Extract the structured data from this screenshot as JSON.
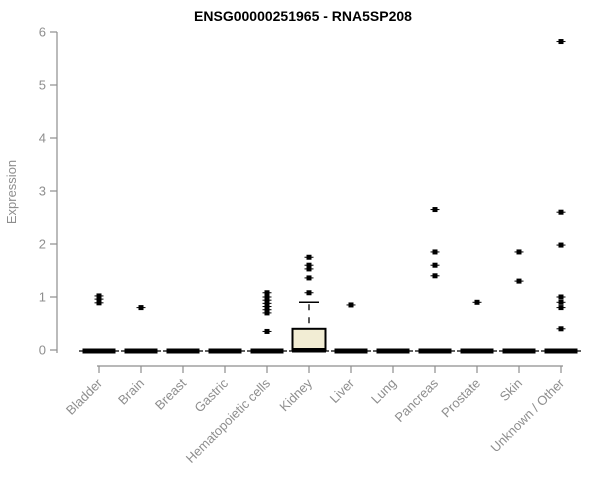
{
  "chart_data": {
    "type": "boxplot",
    "title": "ENSG00000251965 - RNA5SP208",
    "ylabel": "Expression",
    "xlabel": "",
    "ylim": [
      0,
      6
    ],
    "yticks": [
      0,
      1,
      2,
      3,
      4,
      5,
      6
    ],
    "grid": false,
    "legend": null,
    "categories": [
      "Bladder",
      "Brain",
      "Breast",
      "Gastric",
      "Hematopoietic cells",
      "Kidney",
      "Liver",
      "Lung",
      "Pancreas",
      "Prostate",
      "Skin",
      "Unknown / Other"
    ],
    "boxes": [
      {
        "category": "Bladder",
        "median": 0,
        "q1": 0,
        "q3": 0,
        "whisker_low": 0,
        "whisker_high": 0,
        "outliers": [
          1.02,
          0.96,
          0.89
        ]
      },
      {
        "category": "Brain",
        "median": 0,
        "q1": 0,
        "q3": 0,
        "whisker_low": 0,
        "whisker_high": 0,
        "outliers": [
          0.8
        ]
      },
      {
        "category": "Breast",
        "median": 0,
        "q1": 0,
        "q3": 0,
        "whisker_low": 0,
        "whisker_high": 0,
        "outliers": []
      },
      {
        "category": "Gastric",
        "median": 0,
        "q1": 0,
        "q3": 0,
        "whisker_low": 0,
        "whisker_high": 0,
        "outliers": []
      },
      {
        "category": "Hematopoietic cells",
        "median": 0,
        "q1": 0,
        "q3": 0,
        "whisker_low": 0,
        "whisker_high": 0,
        "outliers": [
          1.08,
          1.0,
          0.94,
          0.88,
          0.82,
          0.76,
          0.7,
          0.35
        ]
      },
      {
        "category": "Kidney",
        "median": 0,
        "q1": 0,
        "q3": 0.4,
        "whisker_low": 0,
        "whisker_high": 0.9,
        "outliers": [
          1.75,
          1.6,
          1.53,
          1.36,
          1.08
        ]
      },
      {
        "category": "Liver",
        "median": 0,
        "q1": 0,
        "q3": 0,
        "whisker_low": 0,
        "whisker_high": 0,
        "outliers": [
          0.85
        ]
      },
      {
        "category": "Lung",
        "median": 0,
        "q1": 0,
        "q3": 0,
        "whisker_low": 0,
        "whisker_high": 0,
        "outliers": []
      },
      {
        "category": "Pancreas",
        "median": 0,
        "q1": 0,
        "q3": 0,
        "whisker_low": 0,
        "whisker_high": 0,
        "outliers": [
          2.65,
          1.85,
          1.6,
          1.4
        ]
      },
      {
        "category": "Prostate",
        "median": 0,
        "q1": 0,
        "q3": 0,
        "whisker_low": 0,
        "whisker_high": 0,
        "outliers": [
          0.9
        ]
      },
      {
        "category": "Skin",
        "median": 0,
        "q1": 0,
        "q3": 0,
        "whisker_low": 0,
        "whisker_high": 0,
        "outliers": [
          1.85,
          1.3
        ]
      },
      {
        "category": "Unknown / Other",
        "median": 0,
        "q1": 0,
        "q3": 0,
        "whisker_low": 0,
        "whisker_high": 0,
        "outliers": [
          5.82,
          2.6,
          1.98,
          1.0,
          0.9,
          0.8,
          0.4
        ]
      }
    ],
    "colors": {
      "box_fill": "#f2edd4",
      "box_border": "#000000",
      "median": "#000000",
      "outlier": "#000000",
      "whisker": "#000000",
      "axis": "#8e8e8e",
      "title_color": "#000000",
      "background": "#ffffff"
    }
  }
}
